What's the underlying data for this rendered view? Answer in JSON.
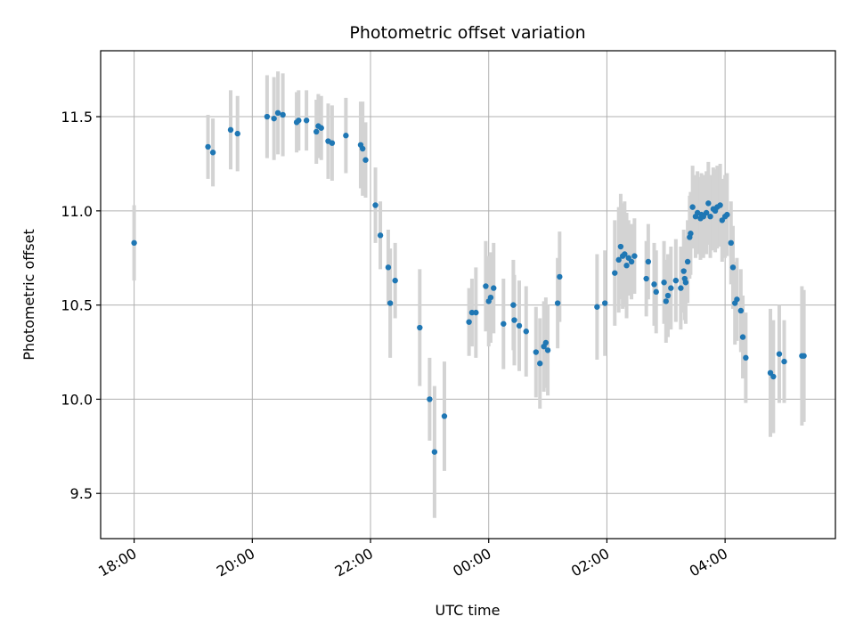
{
  "chart_data": {
    "type": "scatter",
    "title": "Photometric offset variation",
    "xlabel": "UTC time",
    "ylabel": "Photometric offset",
    "xlim": [
      "17:26",
      "05:52"
    ],
    "ylim": [
      9.26,
      11.85
    ],
    "grid": true,
    "x_ticks": [
      "18:00",
      "20:00",
      "22:00",
      "00:00",
      "02:00",
      "04:00"
    ],
    "y_ticks": [
      9.5,
      10.0,
      10.5,
      11.0,
      11.5
    ],
    "colors": {
      "point": "#1f77b4",
      "error_bar": "#d3d3d3"
    },
    "series": [
      {
        "x": [
          "18:00",
          "19:15",
          "19:20",
          "19:38",
          "19:45",
          "20:15",
          "20:22",
          "20:26",
          "20:31",
          "20:45",
          "20:47",
          "20:55",
          "21:05",
          "21:07",
          "21:10",
          "21:17",
          "21:21",
          "21:35",
          "21:50",
          "21:52",
          "21:55",
          "22:05",
          "22:10",
          "22:18",
          "22:20",
          "22:25",
          "22:50",
          "23:00",
          "23:05",
          "23:15",
          "23:40",
          "23:43",
          "23:47",
          "23:57",
          "24:00",
          "24:02",
          "24:05",
          "24:15",
          "24:25",
          "24:26",
          "24:31",
          "24:38",
          "24:48",
          "24:52",
          "24:56",
          "24:58",
          "25:00",
          "25:10",
          "25:12",
          "25:50",
          "25:58",
          "26:08",
          "26:12",
          "26:14",
          "26:16",
          "26:18",
          "26:20",
          "26:22",
          "26:25",
          "26:28",
          "26:40",
          "26:42",
          "26:48",
          "26:50",
          "26:58",
          "27:00",
          "27:02",
          "27:05",
          "27:10",
          "27:15",
          "27:18",
          "27:19",
          "27:20",
          "27:22",
          "27:24",
          "27:25",
          "27:27",
          "27:30",
          "27:32",
          "27:35",
          "27:36",
          "27:38",
          "27:41",
          "27:43",
          "27:45",
          "27:48",
          "27:50",
          "27:52",
          "27:55",
          "27:57",
          "28:00",
          "28:02",
          "28:06",
          "28:08",
          "28:10",
          "28:12",
          "28:16",
          "28:18",
          "28:21",
          "28:46",
          "28:49",
          "28:55",
          "29:00",
          "29:18",
          "29:20"
        ],
        "y": [
          10.83,
          11.34,
          11.31,
          11.43,
          11.41,
          11.5,
          11.49,
          11.52,
          11.51,
          11.47,
          11.48,
          11.48,
          11.42,
          11.45,
          11.44,
          11.37,
          11.36,
          11.4,
          11.35,
          11.33,
          11.27,
          11.03,
          10.87,
          10.7,
          10.51,
          10.63,
          10.38,
          10.0,
          9.72,
          9.91,
          10.41,
          10.46,
          10.46,
          10.6,
          10.52,
          10.54,
          10.59,
          10.4,
          10.5,
          10.42,
          10.39,
          10.36,
          10.25,
          10.19,
          10.28,
          10.3,
          10.26,
          10.51,
          10.65,
          10.49,
          10.51,
          10.67,
          10.74,
          10.81,
          10.76,
          10.77,
          10.71,
          10.75,
          10.73,
          10.76,
          10.64,
          10.73,
          10.61,
          10.57,
          10.62,
          10.52,
          10.55,
          10.59,
          10.63,
          10.59,
          10.68,
          10.64,
          10.62,
          10.73,
          10.86,
          10.88,
          11.02,
          10.97,
          10.99,
          10.96,
          10.98,
          10.97,
          10.99,
          11.04,
          10.97,
          11.01,
          11.0,
          11.02,
          11.03,
          10.95,
          10.97,
          10.98,
          10.83,
          10.7,
          10.51,
          10.53,
          10.47,
          10.33,
          10.22,
          10.14,
          10.12,
          10.24,
          10.2,
          10.23,
          10.23
        ],
        "yerr": [
          0.2,
          0.17,
          0.18,
          0.21,
          0.2,
          0.22,
          0.22,
          0.22,
          0.22,
          0.16,
          0.16,
          0.16,
          0.17,
          0.17,
          0.17,
          0.2,
          0.2,
          0.2,
          0.23,
          0.25,
          0.2,
          0.2,
          0.18,
          0.2,
          0.29,
          0.2,
          0.31,
          0.22,
          0.35,
          0.29,
          0.18,
          0.18,
          0.24,
          0.24,
          0.24,
          0.24,
          0.24,
          0.24,
          0.24,
          0.24,
          0.24,
          0.24,
          0.24,
          0.24,
          0.24,
          0.24,
          0.24,
          0.24,
          0.24,
          0.28,
          0.28,
          0.28,
          0.28,
          0.28,
          0.28,
          0.28,
          0.28,
          0.2,
          0.2,
          0.2,
          0.2,
          0.2,
          0.22,
          0.22,
          0.22,
          0.22,
          0.22,
          0.22,
          0.22,
          0.22,
          0.22,
          0.22,
          0.22,
          0.22,
          0.22,
          0.22,
          0.22,
          0.22,
          0.22,
          0.22,
          0.22,
          0.22,
          0.22,
          0.22,
          0.22,
          0.22,
          0.22,
          0.22,
          0.22,
          0.22,
          0.22,
          0.22,
          0.22,
          0.22,
          0.22,
          0.22,
          0.22,
          0.22,
          0.24,
          0.34,
          0.3,
          0.26,
          0.22,
          0.37,
          0.35
        ]
      }
    ]
  }
}
